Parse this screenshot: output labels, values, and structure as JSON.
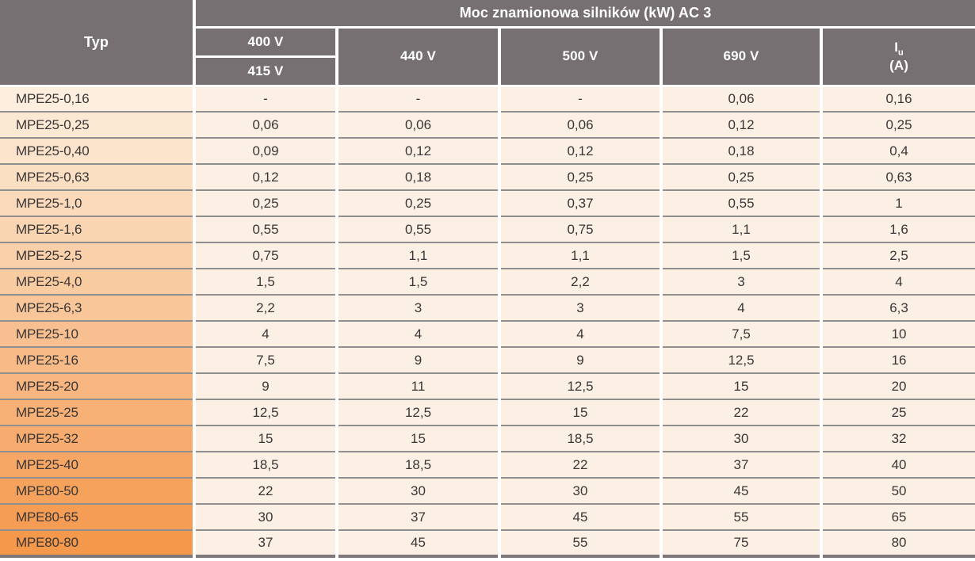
{
  "table": {
    "typ_header": "Typ",
    "main_header": "Moc znamionowa silników (kW) AC 3",
    "col_400": "400 V",
    "col_415": "415 V",
    "col_440": "440 V",
    "col_500": "500 V",
    "col_690": "690 V",
    "iu_symbol": "I",
    "iu_sub": "u",
    "iu_unit": "(A)",
    "rows": [
      {
        "typ": "MPE25-0,16",
        "values": [
          "-",
          "-",
          "-",
          "0,06",
          "0,16"
        ]
      },
      {
        "typ": "MPE25-0,25",
        "values": [
          "0,06",
          "0,06",
          "0,06",
          "0,12",
          "0,25"
        ]
      },
      {
        "typ": "MPE25-0,40",
        "values": [
          "0,09",
          "0,12",
          "0,12",
          "0,18",
          "0,4"
        ]
      },
      {
        "typ": "MPE25-0,63",
        "values": [
          "0,12",
          "0,18",
          "0,25",
          "0,25",
          "0,63"
        ]
      },
      {
        "typ": "MPE25-1,0",
        "values": [
          "0,25",
          "0,25",
          "0,37",
          "0,55",
          "1"
        ]
      },
      {
        "typ": "MPE25-1,6",
        "values": [
          "0,55",
          "0,55",
          "0,75",
          "1,1",
          "1,6"
        ]
      },
      {
        "typ": "MPE25-2,5",
        "values": [
          "0,75",
          "1,1",
          "1,1",
          "1,5",
          "2,5"
        ]
      },
      {
        "typ": "MPE25-4,0",
        "values": [
          "1,5",
          "1,5",
          "2,2",
          "3",
          "4"
        ]
      },
      {
        "typ": "MPE25-6,3",
        "values": [
          "2,2",
          "3",
          "3",
          "4",
          "6,3"
        ]
      },
      {
        "typ": "MPE25-10",
        "values": [
          "4",
          "4",
          "4",
          "7,5",
          "10"
        ]
      },
      {
        "typ": "MPE25-16",
        "values": [
          "7,5",
          "9",
          "9",
          "12,5",
          "16"
        ]
      },
      {
        "typ": "MPE25-20",
        "values": [
          "9",
          "11",
          "12,5",
          "15",
          "20"
        ]
      },
      {
        "typ": "MPE25-25",
        "values": [
          "12,5",
          "12,5",
          "15",
          "22",
          "25"
        ]
      },
      {
        "typ": "MPE25-32",
        "values": [
          "15",
          "15",
          "18,5",
          "30",
          "32"
        ]
      },
      {
        "typ": "MPE25-40",
        "values": [
          "18,5",
          "18,5",
          "22",
          "37",
          "40"
        ]
      },
      {
        "typ": "MPE80-50",
        "values": [
          "22",
          "30",
          "30",
          "45",
          "50"
        ]
      },
      {
        "typ": "MPE80-65",
        "values": [
          "30",
          "37",
          "45",
          "55",
          "65"
        ]
      },
      {
        "typ": "MPE80-80",
        "values": [
          "37",
          "45",
          "55",
          "75",
          "80"
        ]
      }
    ]
  },
  "colors": {
    "header_bg": "#767072",
    "header_text": "#ffffff",
    "cell_bg": "#fbf0e3",
    "typ_gradient_top": "#fdeedd",
    "typ_gradient_bottom": "#f4984c",
    "row_separator": "#8f8f8f",
    "text": "#3a3637"
  },
  "chart_data": {
    "type": "table",
    "title": "Moc znamionowa silników (kW) AC 3",
    "columns": [
      "Typ",
      "400 V / 415 V",
      "440 V",
      "500 V",
      "690 V",
      "Iu (A)"
    ],
    "rows": [
      [
        "MPE25-0,16",
        "-",
        "-",
        "-",
        "0,06",
        "0,16"
      ],
      [
        "MPE25-0,25",
        "0,06",
        "0,06",
        "0,06",
        "0,12",
        "0,25"
      ],
      [
        "MPE25-0,40",
        "0,09",
        "0,12",
        "0,12",
        "0,18",
        "0,4"
      ],
      [
        "MPE25-0,63",
        "0,12",
        "0,18",
        "0,25",
        "0,25",
        "0,63"
      ],
      [
        "MPE25-1,0",
        "0,25",
        "0,25",
        "0,37",
        "0,55",
        "1"
      ],
      [
        "MPE25-1,6",
        "0,55",
        "0,55",
        "0,75",
        "1,1",
        "1,6"
      ],
      [
        "MPE25-2,5",
        "0,75",
        "1,1",
        "1,1",
        "1,5",
        "2,5"
      ],
      [
        "MPE25-4,0",
        "1,5",
        "1,5",
        "2,2",
        "3",
        "4"
      ],
      [
        "MPE25-6,3",
        "2,2",
        "3",
        "3",
        "4",
        "6,3"
      ],
      [
        "MPE25-10",
        "4",
        "4",
        "4",
        "7,5",
        "10"
      ],
      [
        "MPE25-16",
        "7,5",
        "9",
        "9",
        "12,5",
        "16"
      ],
      [
        "MPE25-20",
        "9",
        "11",
        "12,5",
        "15",
        "20"
      ],
      [
        "MPE25-25",
        "12,5",
        "12,5",
        "15",
        "22",
        "25"
      ],
      [
        "MPE25-32",
        "15",
        "15",
        "18,5",
        "30",
        "32"
      ],
      [
        "MPE25-40",
        "18,5",
        "18,5",
        "22",
        "37",
        "40"
      ],
      [
        "MPE80-50",
        "22",
        "30",
        "30",
        "45",
        "50"
      ],
      [
        "MPE80-65",
        "30",
        "37",
        "45",
        "55",
        "65"
      ],
      [
        "MPE80-80",
        "37",
        "45",
        "55",
        "75",
        "80"
      ]
    ]
  }
}
